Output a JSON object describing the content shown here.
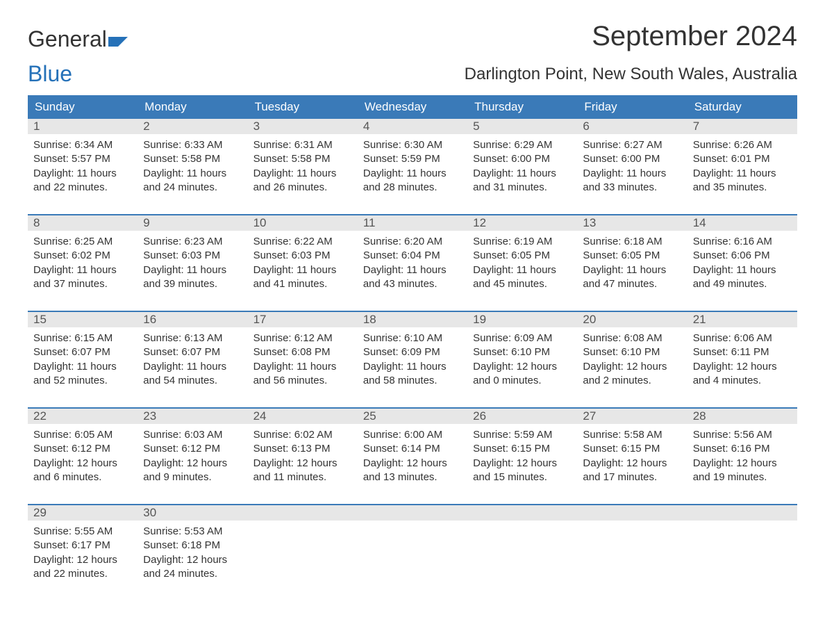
{
  "brand": {
    "word1": "General",
    "word2": "Blue"
  },
  "title": "September 2024",
  "location": "Darlington Point, New South Wales, Australia",
  "colors": {
    "header_bg": "#3a7ab8",
    "header_text": "#ffffff",
    "daynum_bg": "#e7e7e7",
    "week_border": "#3a7ab8",
    "text": "#333333",
    "brand_accent": "#2571b8",
    "background": "#ffffff"
  },
  "layout": {
    "columns": 7,
    "font_family": "Arial",
    "month_title_fontsize": 40,
    "location_fontsize": 24,
    "dow_fontsize": 17,
    "daynum_fontsize": 17,
    "body_fontsize": 15
  },
  "days_of_week": [
    "Sunday",
    "Monday",
    "Tuesday",
    "Wednesday",
    "Thursday",
    "Friday",
    "Saturday"
  ],
  "days": [
    {
      "n": "1",
      "sunrise": "Sunrise: 6:34 AM",
      "sunset": "Sunset: 5:57 PM",
      "d1": "Daylight: 11 hours",
      "d2": "and 22 minutes."
    },
    {
      "n": "2",
      "sunrise": "Sunrise: 6:33 AM",
      "sunset": "Sunset: 5:58 PM",
      "d1": "Daylight: 11 hours",
      "d2": "and 24 minutes."
    },
    {
      "n": "3",
      "sunrise": "Sunrise: 6:31 AM",
      "sunset": "Sunset: 5:58 PM",
      "d1": "Daylight: 11 hours",
      "d2": "and 26 minutes."
    },
    {
      "n": "4",
      "sunrise": "Sunrise: 6:30 AM",
      "sunset": "Sunset: 5:59 PM",
      "d1": "Daylight: 11 hours",
      "d2": "and 28 minutes."
    },
    {
      "n": "5",
      "sunrise": "Sunrise: 6:29 AM",
      "sunset": "Sunset: 6:00 PM",
      "d1": "Daylight: 11 hours",
      "d2": "and 31 minutes."
    },
    {
      "n": "6",
      "sunrise": "Sunrise: 6:27 AM",
      "sunset": "Sunset: 6:00 PM",
      "d1": "Daylight: 11 hours",
      "d2": "and 33 minutes."
    },
    {
      "n": "7",
      "sunrise": "Sunrise: 6:26 AM",
      "sunset": "Sunset: 6:01 PM",
      "d1": "Daylight: 11 hours",
      "d2": "and 35 minutes."
    },
    {
      "n": "8",
      "sunrise": "Sunrise: 6:25 AM",
      "sunset": "Sunset: 6:02 PM",
      "d1": "Daylight: 11 hours",
      "d2": "and 37 minutes."
    },
    {
      "n": "9",
      "sunrise": "Sunrise: 6:23 AM",
      "sunset": "Sunset: 6:03 PM",
      "d1": "Daylight: 11 hours",
      "d2": "and 39 minutes."
    },
    {
      "n": "10",
      "sunrise": "Sunrise: 6:22 AM",
      "sunset": "Sunset: 6:03 PM",
      "d1": "Daylight: 11 hours",
      "d2": "and 41 minutes."
    },
    {
      "n": "11",
      "sunrise": "Sunrise: 6:20 AM",
      "sunset": "Sunset: 6:04 PM",
      "d1": "Daylight: 11 hours",
      "d2": "and 43 minutes."
    },
    {
      "n": "12",
      "sunrise": "Sunrise: 6:19 AM",
      "sunset": "Sunset: 6:05 PM",
      "d1": "Daylight: 11 hours",
      "d2": "and 45 minutes."
    },
    {
      "n": "13",
      "sunrise": "Sunrise: 6:18 AM",
      "sunset": "Sunset: 6:05 PM",
      "d1": "Daylight: 11 hours",
      "d2": "and 47 minutes."
    },
    {
      "n": "14",
      "sunrise": "Sunrise: 6:16 AM",
      "sunset": "Sunset: 6:06 PM",
      "d1": "Daylight: 11 hours",
      "d2": "and 49 minutes."
    },
    {
      "n": "15",
      "sunrise": "Sunrise: 6:15 AM",
      "sunset": "Sunset: 6:07 PM",
      "d1": "Daylight: 11 hours",
      "d2": "and 52 minutes."
    },
    {
      "n": "16",
      "sunrise": "Sunrise: 6:13 AM",
      "sunset": "Sunset: 6:07 PM",
      "d1": "Daylight: 11 hours",
      "d2": "and 54 minutes."
    },
    {
      "n": "17",
      "sunrise": "Sunrise: 6:12 AM",
      "sunset": "Sunset: 6:08 PM",
      "d1": "Daylight: 11 hours",
      "d2": "and 56 minutes."
    },
    {
      "n": "18",
      "sunrise": "Sunrise: 6:10 AM",
      "sunset": "Sunset: 6:09 PM",
      "d1": "Daylight: 11 hours",
      "d2": "and 58 minutes."
    },
    {
      "n": "19",
      "sunrise": "Sunrise: 6:09 AM",
      "sunset": "Sunset: 6:10 PM",
      "d1": "Daylight: 12 hours",
      "d2": "and 0 minutes."
    },
    {
      "n": "20",
      "sunrise": "Sunrise: 6:08 AM",
      "sunset": "Sunset: 6:10 PM",
      "d1": "Daylight: 12 hours",
      "d2": "and 2 minutes."
    },
    {
      "n": "21",
      "sunrise": "Sunrise: 6:06 AM",
      "sunset": "Sunset: 6:11 PM",
      "d1": "Daylight: 12 hours",
      "d2": "and 4 minutes."
    },
    {
      "n": "22",
      "sunrise": "Sunrise: 6:05 AM",
      "sunset": "Sunset: 6:12 PM",
      "d1": "Daylight: 12 hours",
      "d2": "and 6 minutes."
    },
    {
      "n": "23",
      "sunrise": "Sunrise: 6:03 AM",
      "sunset": "Sunset: 6:12 PM",
      "d1": "Daylight: 12 hours",
      "d2": "and 9 minutes."
    },
    {
      "n": "24",
      "sunrise": "Sunrise: 6:02 AM",
      "sunset": "Sunset: 6:13 PM",
      "d1": "Daylight: 12 hours",
      "d2": "and 11 minutes."
    },
    {
      "n": "25",
      "sunrise": "Sunrise: 6:00 AM",
      "sunset": "Sunset: 6:14 PM",
      "d1": "Daylight: 12 hours",
      "d2": "and 13 minutes."
    },
    {
      "n": "26",
      "sunrise": "Sunrise: 5:59 AM",
      "sunset": "Sunset: 6:15 PM",
      "d1": "Daylight: 12 hours",
      "d2": "and 15 minutes."
    },
    {
      "n": "27",
      "sunrise": "Sunrise: 5:58 AM",
      "sunset": "Sunset: 6:15 PM",
      "d1": "Daylight: 12 hours",
      "d2": "and 17 minutes."
    },
    {
      "n": "28",
      "sunrise": "Sunrise: 5:56 AM",
      "sunset": "Sunset: 6:16 PM",
      "d1": "Daylight: 12 hours",
      "d2": "and 19 minutes."
    },
    {
      "n": "29",
      "sunrise": "Sunrise: 5:55 AM",
      "sunset": "Sunset: 6:17 PM",
      "d1": "Daylight: 12 hours",
      "d2": "and 22 minutes."
    },
    {
      "n": "30",
      "sunrise": "Sunrise: 5:53 AM",
      "sunset": "Sunset: 6:18 PM",
      "d1": "Daylight: 12 hours",
      "d2": "and 24 minutes."
    }
  ]
}
